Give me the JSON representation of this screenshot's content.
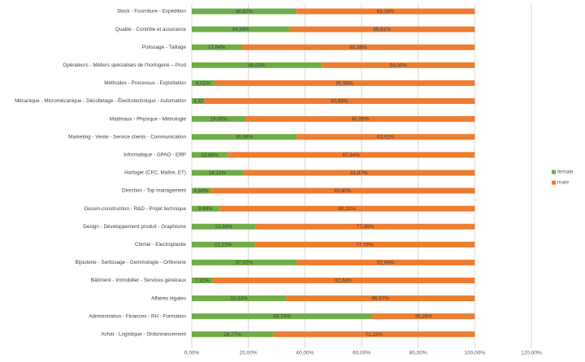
{
  "chart_data": {
    "type": "bar",
    "orientation": "horizontal",
    "stacked": true,
    "categories": [
      "Stock - Fourniture - Expédition",
      "Qualité - Contrôle et assurance",
      "Polissage - Taillage",
      "Opérateurs - Métiers spécialisés de l'horlogerie – Prod",
      "Méthodes - Processus - Exploitation",
      "Mécanique - Micromécanique - Décolletage - Électrotechnique - Automation",
      "Matériaux - Physique - Métrologie",
      "Marketing - Vente - Service clients - Communication",
      "Informatique - GPAO - ERP",
      "Horloger (CFC, Maître, ET)",
      "Direction - Top management",
      "Dessin-construction - R&D - Projet technique",
      "Design - Développement produit - Graphisme",
      "Chimie - Electroplastie",
      "Bijouterie - Sertissage - Gemmologie - Orfèvrerie",
      "Bâtiment - Immobilier - Services généraux",
      "Affaires légales",
      "Administration - Finances - RH - Formation",
      "Achat - Logistique - Ordonnancement"
    ],
    "series": [
      {
        "name": "female",
        "color": "#70ad47",
        "values": [
          36.82,
          34.39,
          17.64,
          46.0,
          8.01,
          4.32,
          19.05,
          36.98,
          12.66,
          18.13,
          6.6,
          9.69,
          22.64,
          22.22,
          37.02,
          7.32,
          33.33,
          63.74,
          28.77
        ],
        "labels": [
          "36,82%",
          "34,39%",
          "17,64%",
          "46,00%",
          "8,01%",
          "4,32%",
          "19,05%",
          "36,98%",
          "12,66%",
          "18,13%",
          "6,60%",
          "9,69%",
          "22,64%",
          "22,22%",
          "37,02%",
          "7,32%",
          "33,33%",
          "63,74%",
          "28,77%"
        ]
      },
      {
        "name": "male",
        "color": "#ed7d31",
        "values": [
          63.18,
          65.61,
          82.36,
          54.0,
          91.99,
          95.68,
          80.95,
          63.02,
          87.34,
          81.87,
          93.4,
          90.31,
          77.36,
          77.78,
          62.98,
          92.68,
          66.67,
          36.26,
          71.23
        ],
        "labels": [
          "63,18%",
          "65,61%",
          "82,36%",
          "54,00%",
          "91,99%",
          "95,68%",
          "80,95%",
          "63,02%",
          "87,34%",
          "81,87%",
          "93,40%",
          "90,31%",
          "77,36%",
          "77,78%",
          "62,98%",
          "92,68%",
          "66,67%",
          "36,26%",
          "71,23%"
        ]
      }
    ],
    "xlim": [
      0,
      120
    ],
    "xticks": [
      0,
      20,
      40,
      60,
      80,
      100,
      120
    ],
    "xtick_labels": [
      "0,00%",
      "20,00%",
      "40,00%",
      "60,00%",
      "80,00%",
      "100,00%",
      "120,00%"
    ],
    "grid": true,
    "legend_position": "right",
    "title": "",
    "xlabel": "",
    "ylabel": ""
  }
}
